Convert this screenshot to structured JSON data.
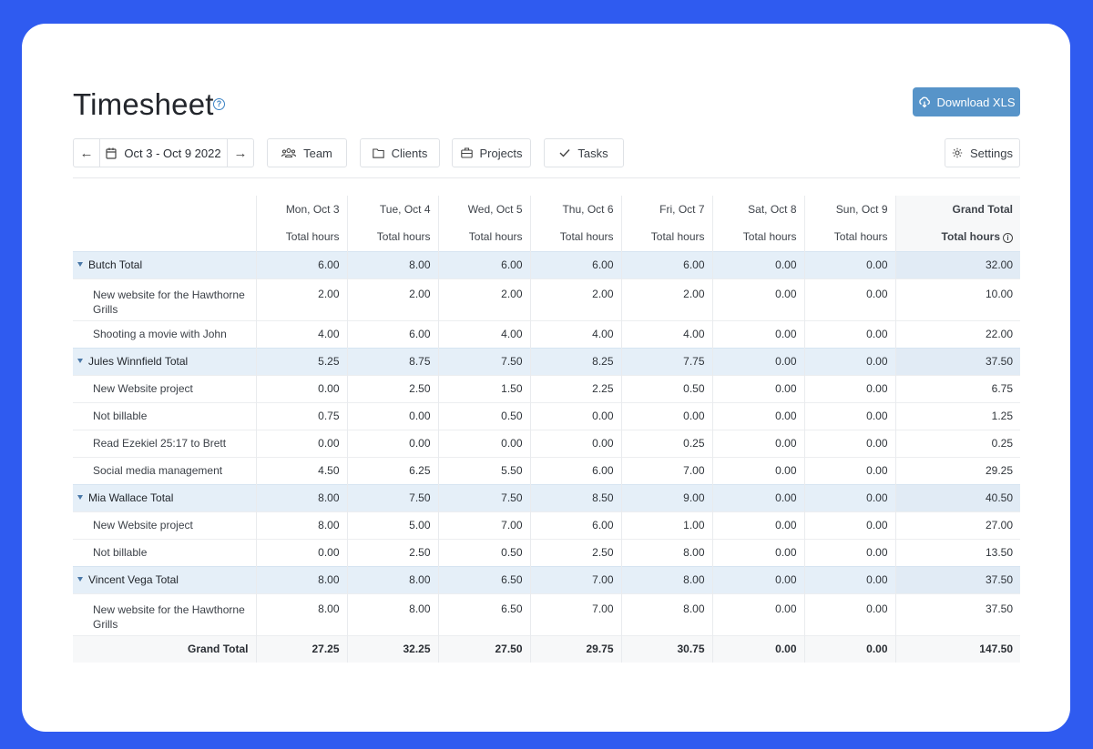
{
  "page": {
    "title": "Timesheet",
    "download_label": "Download XLS"
  },
  "toolbar": {
    "date_range": "Oct 3 - Oct 9 2022",
    "team_label": "Team",
    "clients_label": "Clients",
    "projects_label": "Projects",
    "tasks_label": "Tasks",
    "settings_label": "Settings"
  },
  "table": {
    "days": [
      "Mon, Oct 3",
      "Tue, Oct 4",
      "Wed, Oct 5",
      "Thu, Oct 6",
      "Fri, Oct 7",
      "Sat, Oct 8",
      "Sun, Oct 9"
    ],
    "grand_total_header": "Grand Total",
    "subheader": "Total hours",
    "rows": [
      {
        "type": "group",
        "name": "Butch Total",
        "values": [
          "6.00",
          "8.00",
          "6.00",
          "6.00",
          "6.00",
          "0.00",
          "0.00"
        ],
        "total": "32.00"
      },
      {
        "type": "item",
        "name": "New website for the Hawthorne Grills",
        "values": [
          "2.00",
          "2.00",
          "2.00",
          "2.00",
          "2.00",
          "0.00",
          "0.00"
        ],
        "total": "10.00"
      },
      {
        "type": "item",
        "name": "Shooting a movie with John",
        "values": [
          "4.00",
          "6.00",
          "4.00",
          "4.00",
          "4.00",
          "0.00",
          "0.00"
        ],
        "total": "22.00"
      },
      {
        "type": "group",
        "name": "Jules Winnfield Total",
        "values": [
          "5.25",
          "8.75",
          "7.50",
          "8.25",
          "7.75",
          "0.00",
          "0.00"
        ],
        "total": "37.50"
      },
      {
        "type": "item",
        "name": "New Website project",
        "values": [
          "0.00",
          "2.50",
          "1.50",
          "2.25",
          "0.50",
          "0.00",
          "0.00"
        ],
        "total": "6.75"
      },
      {
        "type": "item",
        "name": "Not billable",
        "values": [
          "0.75",
          "0.00",
          "0.50",
          "0.00",
          "0.00",
          "0.00",
          "0.00"
        ],
        "total": "1.25"
      },
      {
        "type": "item",
        "name": "Read Ezekiel 25:17 to Brett",
        "values": [
          "0.00",
          "0.00",
          "0.00",
          "0.00",
          "0.25",
          "0.00",
          "0.00"
        ],
        "total": "0.25"
      },
      {
        "type": "item",
        "name": "Social media management",
        "values": [
          "4.50",
          "6.25",
          "5.50",
          "6.00",
          "7.00",
          "0.00",
          "0.00"
        ],
        "total": "29.25"
      },
      {
        "type": "group",
        "name": "Mia Wallace Total",
        "values": [
          "8.00",
          "7.50",
          "7.50",
          "8.50",
          "9.00",
          "0.00",
          "0.00"
        ],
        "total": "40.50"
      },
      {
        "type": "item",
        "name": "New Website project",
        "values": [
          "8.00",
          "5.00",
          "7.00",
          "6.00",
          "1.00",
          "0.00",
          "0.00"
        ],
        "total": "27.00"
      },
      {
        "type": "item",
        "name": "Not billable",
        "values": [
          "0.00",
          "2.50",
          "0.50",
          "2.50",
          "8.00",
          "0.00",
          "0.00"
        ],
        "total": "13.50"
      },
      {
        "type": "group",
        "name": "Vincent Vega Total",
        "values": [
          "8.00",
          "8.00",
          "6.50",
          "7.00",
          "8.00",
          "0.00",
          "0.00"
        ],
        "total": "37.50"
      },
      {
        "type": "item",
        "name": "New website for the Hawthorne Grills",
        "values": [
          "8.00",
          "8.00",
          "6.50",
          "7.00",
          "8.00",
          "0.00",
          "0.00"
        ],
        "total": "37.50"
      }
    ],
    "grand_total_row": {
      "name": "Grand Total",
      "values": [
        "27.25",
        "32.25",
        "27.50",
        "29.75",
        "30.75",
        "0.00",
        "0.00"
      ],
      "total": "147.50"
    }
  }
}
